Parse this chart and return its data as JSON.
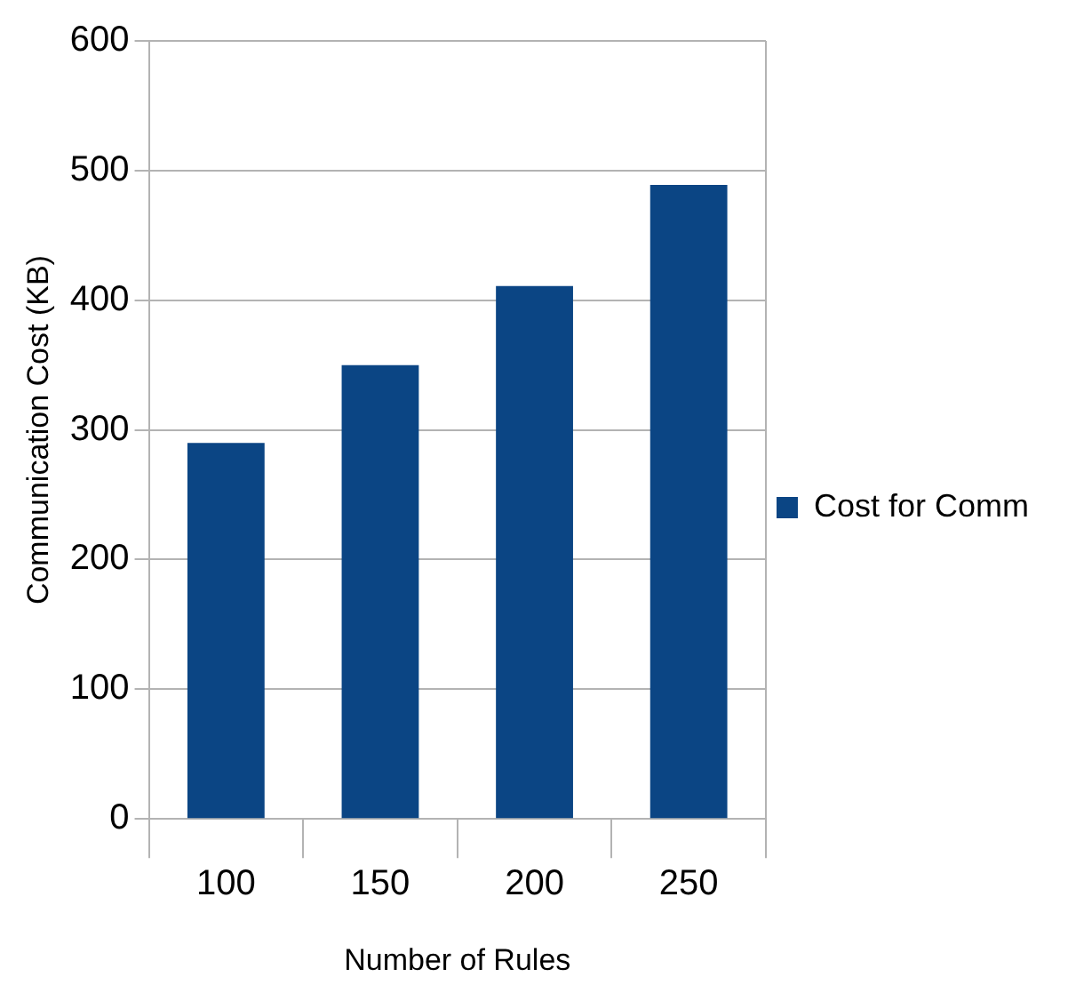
{
  "chart_data": {
    "type": "bar",
    "xlabel": "Number of Rules",
    "ylabel": "Communication Cost (KB)",
    "categories": [
      "100",
      "150",
      "200",
      "250"
    ],
    "series": [
      {
        "name": "Cost for Comm",
        "color": "#0b4584",
        "values": [
          290,
          350,
          411,
          489
        ]
      }
    ],
    "ylim": [
      0,
      600
    ],
    "yticks": [
      0,
      100,
      200,
      300,
      400,
      500,
      600
    ],
    "grid": "y",
    "legend": "right"
  }
}
